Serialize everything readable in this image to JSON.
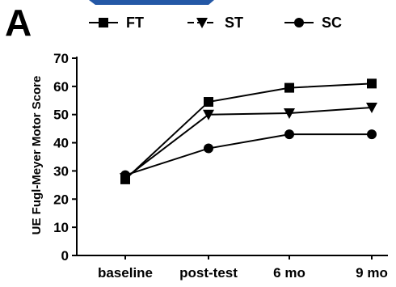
{
  "panel_label": "A",
  "colors": {
    "line": "#000000",
    "header_band": "#2458a6"
  },
  "chart_data": {
    "type": "line",
    "title": "",
    "xlabel": "",
    "ylabel": "UE Fugl-Meyer Motor Score",
    "categories": [
      "baseline",
      "post-test",
      "6 mo",
      "9 mo"
    ],
    "ylim": [
      0,
      70
    ],
    "yticks": [
      0,
      10,
      20,
      30,
      40,
      50,
      60,
      70
    ],
    "grid": false,
    "legend_position": "top",
    "series": [
      {
        "name": "FT",
        "marker": "square",
        "values": [
          27,
          54.5,
          59.5,
          61
        ]
      },
      {
        "name": "ST",
        "marker": "triangle-down",
        "values": [
          27.5,
          50,
          50.5,
          52.5
        ]
      },
      {
        "name": "SC",
        "marker": "circle",
        "values": [
          28.5,
          38,
          43,
          43
        ]
      }
    ]
  }
}
